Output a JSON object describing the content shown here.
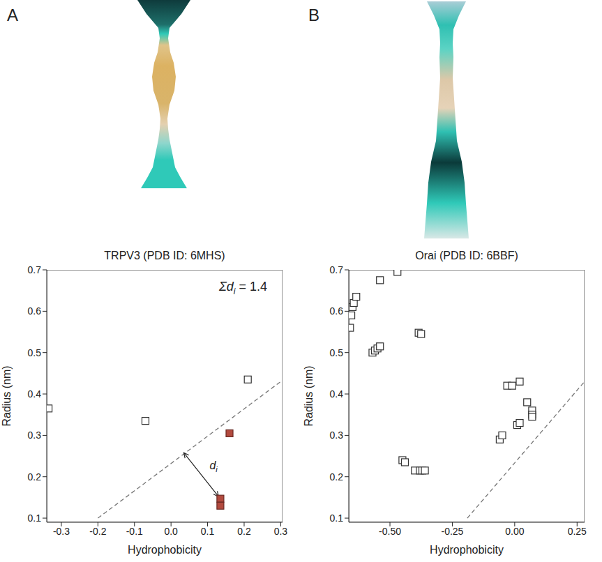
{
  "chart_data": [
    {
      "type": "scatter",
      "panel": "A",
      "title": "TRPV3 (PDB ID: 6MHS)",
      "x_label": "Hydrophobicity",
      "y_label": "Radius (nm)",
      "xlim": [
        -0.34,
        0.305
      ],
      "ylim": [
        0.09,
        0.7
      ],
      "xticks": [
        -0.3,
        -0.2,
        -0.1,
        {
          "value": 0,
          "label": "0.0"
        },
        0.1,
        0.2,
        0.3
      ],
      "yticks": [
        0.1,
        0.2,
        0.3,
        0.4,
        0.5,
        0.6,
        0.7
      ],
      "series": [
        {
          "color": "#ffffff",
          "marker": "square",
          "x": [
            -0.335,
            -0.07,
            0.21
          ],
          "y": [
            0.365,
            0.335,
            0.435
          ]
        },
        {
          "color": "#b24a3e",
          "marker": "square",
          "x": [
            0.16,
            0.135,
            0.135
          ],
          "y": [
            0.305,
            0.147,
            0.13
          ]
        }
      ],
      "threshold": {
        "line_style": "dashed",
        "x": [
          -0.2,
          0.3
        ],
        "y": [
          0.1,
          0.43
        ]
      },
      "distance_arrow": {
        "label": {
          "text": "d",
          "subscript": "i"
        },
        "from": [
          0.035,
          0.258
        ],
        "to": [
          0.13,
          0.152
        ]
      },
      "annotation": {
        "text": "Σd",
        "subscript": "i",
        "rest": " = 1.4"
      }
    },
    {
      "type": "scatter",
      "panel": "B",
      "title": "Orai (PDB ID: 6BBF)",
      "x_label": "Hydrophobicity",
      "y_label": "Radius (nm)",
      "xlim": [
        -0.665,
        0.28
      ],
      "ylim": [
        0.09,
        0.7
      ],
      "xticks": [
        {
          "value": -0.5,
          "label": "-0.50"
        },
        {
          "value": -0.25,
          "label": "-0.25"
        },
        {
          "value": 0,
          "label": "0.00"
        },
        {
          "value": 0.25,
          "label": "0.25"
        }
      ],
      "yticks": [
        0.1,
        0.2,
        0.3,
        0.4,
        0.5,
        0.6,
        0.7
      ],
      "series": [
        {
          "color": "#ffffff",
          "marker": "square",
          "x": [
            -0.66,
            -0.655,
            -0.65,
            -0.645,
            -0.635,
            -0.54,
            -0.47,
            -0.57,
            -0.56,
            -0.55,
            -0.54,
            -0.385,
            -0.375,
            -0.45,
            -0.44,
            -0.4,
            -0.38,
            -0.37,
            -0.36,
            -0.06,
            -0.05,
            -0.03,
            -0.01,
            0.02,
            0.01,
            0.02,
            0.05,
            0.07,
            0.07,
            0.07
          ],
          "y": [
            0.56,
            0.59,
            0.61,
            0.62,
            0.635,
            0.675,
            0.695,
            0.5,
            0.505,
            0.51,
            0.515,
            0.548,
            0.545,
            0.24,
            0.235,
            0.215,
            0.215,
            0.215,
            0.215,
            0.29,
            0.3,
            0.42,
            0.42,
            0.43,
            0.325,
            0.33,
            0.38,
            0.36,
            0.35,
            0.345
          ]
        }
      ],
      "threshold": {
        "line_style": "dashed",
        "x": [
          -0.19,
          0.28
        ],
        "y": [
          0.1,
          0.43
        ]
      }
    }
  ]
}
